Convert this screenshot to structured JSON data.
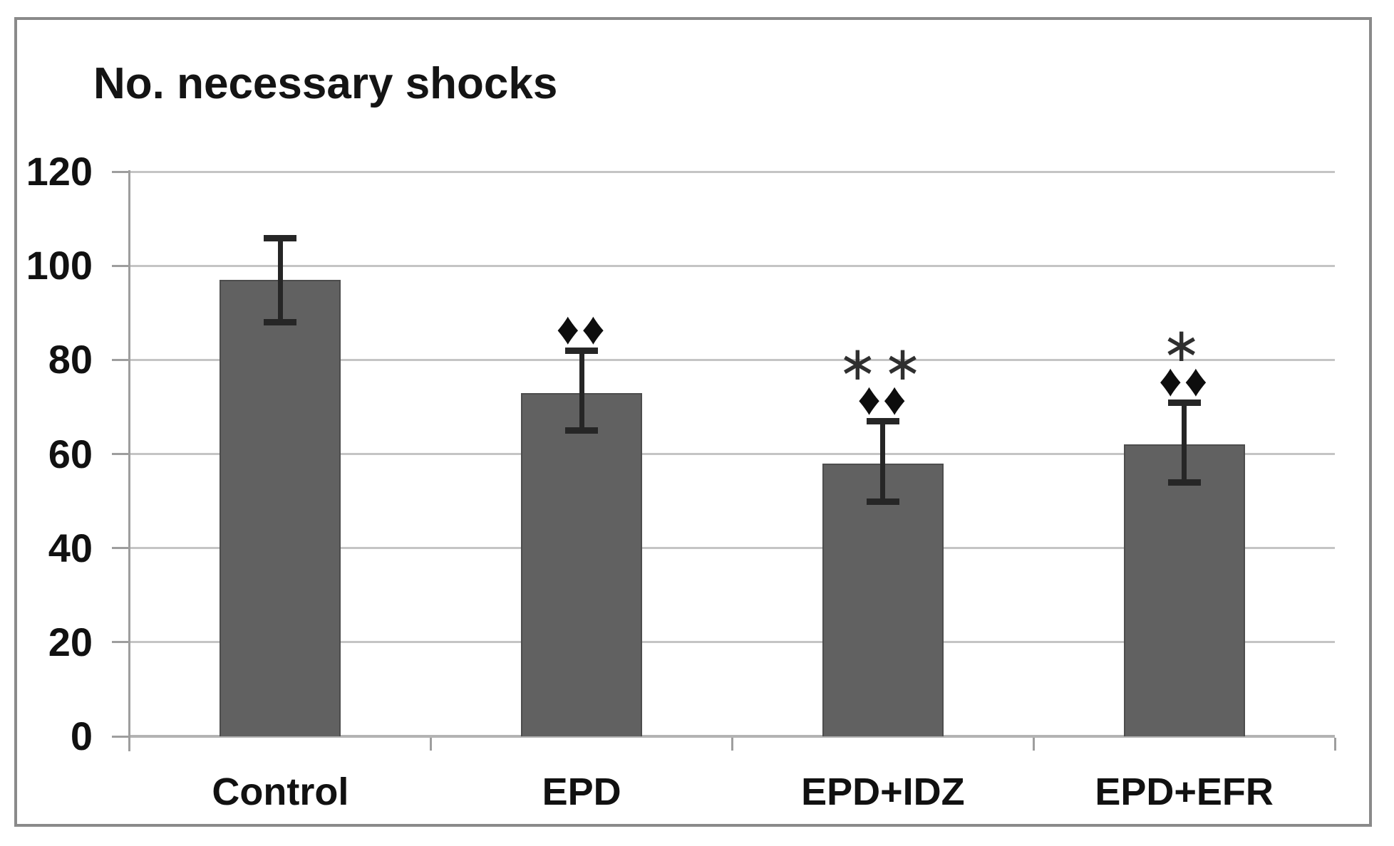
{
  "figure": {
    "title": "No. necessary shocks"
  },
  "chart_data": {
    "type": "bar",
    "title": "No. necessary shocks",
    "xlabel": "",
    "ylabel": "No. necessary shocks",
    "categories": [
      "Control",
      "EPD",
      "EPD+IDZ",
      "EPD+EFR"
    ],
    "values": [
      97,
      73,
      58,
      62
    ],
    "error_upper": [
      106,
      82,
      67,
      71
    ],
    "error_lower": [
      88,
      65,
      50,
      54
    ],
    "annotations": [
      [],
      [
        "♦♦"
      ],
      [
        "**",
        "♦♦"
      ],
      [
        "*",
        "♦♦"
      ]
    ],
    "ylim": [
      0,
      120
    ],
    "yticks": [
      0,
      20,
      40,
      60,
      80,
      100,
      120
    ],
    "grid": true,
    "legend": false,
    "bar_color": "#616161",
    "bar_edge_color": "#4d4d4d",
    "gridline_color": "#c4c4c4",
    "error_bar_color": "#262626",
    "annotation_color": "#0d0d0d",
    "border_color": "#8a8a8a"
  }
}
